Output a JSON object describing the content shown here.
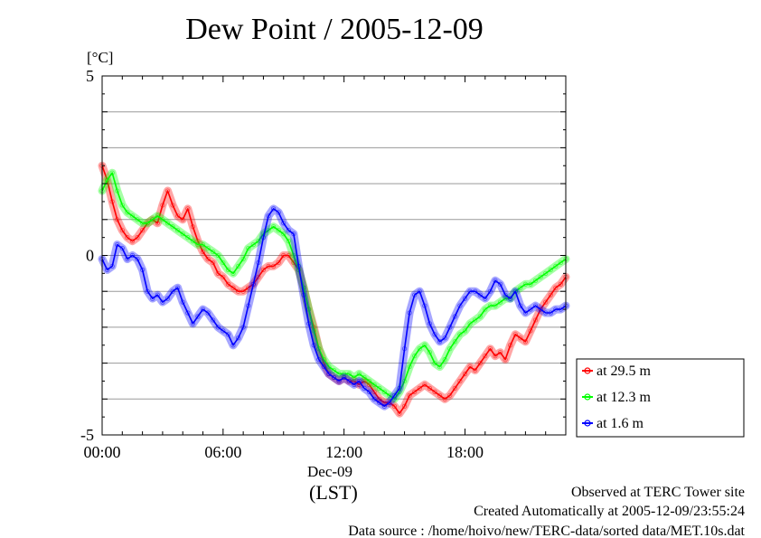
{
  "chart_data": {
    "type": "line",
    "title": "Dew Point / 2005-12-09",
    "ylabel": "[°C]",
    "xlabel": "(LST)",
    "x_sublabel": "Dec-09",
    "xlim": [
      0,
      23
    ],
    "ylim": [
      -5,
      5
    ],
    "x_ticks": [
      "00:00",
      "06:00",
      "12:00",
      "18:00"
    ],
    "x_tick_values": [
      0,
      6,
      12,
      18
    ],
    "y_ticks": [
      "-5",
      "0",
      "5"
    ],
    "y_tick_values": [
      -5,
      0,
      5
    ],
    "grid": true,
    "legend_position": "right-bottom",
    "x_unit": "hour",
    "series": [
      {
        "name": "at 29.5 m",
        "color": "#ff0000",
        "x": [
          0,
          0.25,
          0.5,
          0.75,
          1,
          1.25,
          1.5,
          1.75,
          2,
          2.25,
          2.5,
          2.75,
          3,
          3.25,
          3.5,
          3.75,
          4,
          4.25,
          4.5,
          4.75,
          5,
          5.25,
          5.5,
          5.75,
          6,
          6.25,
          6.5,
          6.75,
          7,
          7.25,
          7.5,
          7.75,
          8,
          8.25,
          8.5,
          8.75,
          9,
          9.25,
          9.5,
          9.75,
          10,
          10.25,
          10.5,
          10.75,
          11,
          11.25,
          11.5,
          11.75,
          12,
          12.25,
          12.5,
          12.75,
          13,
          13.25,
          13.5,
          13.75,
          14,
          14.25,
          14.5,
          14.75,
          15,
          15.25,
          15.5,
          15.75,
          16,
          16.25,
          16.5,
          16.75,
          17,
          17.25,
          17.5,
          17.75,
          18,
          18.25,
          18.5,
          18.75,
          19,
          19.25,
          19.5,
          19.75,
          20,
          20.25,
          20.5,
          20.75,
          21,
          21.25,
          21.5,
          21.75,
          22,
          22.25,
          22.5,
          22.75,
          23
        ],
        "values": [
          2.5,
          2.1,
          1.5,
          1.0,
          0.7,
          0.5,
          0.4,
          0.5,
          0.7,
          0.9,
          1.0,
          0.9,
          1.4,
          1.8,
          1.4,
          1.1,
          1.0,
          1.3,
          0.8,
          0.4,
          0.1,
          -0.1,
          -0.2,
          -0.5,
          -0.6,
          -0.8,
          -0.9,
          -1.0,
          -1.0,
          -0.9,
          -0.8,
          -0.6,
          -0.4,
          -0.3,
          -0.3,
          -0.2,
          0.0,
          0.0,
          -0.2,
          -0.4,
          -0.9,
          -1.5,
          -2.0,
          -2.6,
          -3.0,
          -3.3,
          -3.4,
          -3.5,
          -3.4,
          -3.5,
          -3.5,
          -3.6,
          -3.5,
          -3.6,
          -3.8,
          -4.0,
          -4.1,
          -4.1,
          -4.2,
          -4.4,
          -4.2,
          -3.9,
          -3.8,
          -3.7,
          -3.6,
          -3.7,
          -3.8,
          -3.9,
          -4.0,
          -3.9,
          -3.7,
          -3.5,
          -3.3,
          -3.1,
          -3.2,
          -3.0,
          -2.8,
          -2.6,
          -2.8,
          -2.7,
          -2.9,
          -2.5,
          -2.2,
          -2.3,
          -2.4,
          -2.1,
          -1.8,
          -1.5,
          -1.3,
          -1.1,
          -0.9,
          -0.8,
          -0.6
        ]
      },
      {
        "name": "at 12.3 m",
        "color": "#00ff00",
        "x": [
          0,
          0.25,
          0.5,
          0.75,
          1,
          1.25,
          1.5,
          1.75,
          2,
          2.25,
          2.5,
          2.75,
          3,
          3.25,
          3.5,
          3.75,
          4,
          4.25,
          4.5,
          4.75,
          5,
          5.25,
          5.5,
          5.75,
          6,
          6.25,
          6.5,
          6.75,
          7,
          7.25,
          7.5,
          7.75,
          8,
          8.25,
          8.5,
          8.75,
          9,
          9.25,
          9.5,
          9.75,
          10,
          10.25,
          10.5,
          10.75,
          11,
          11.25,
          11.5,
          11.75,
          12,
          12.25,
          12.5,
          12.75,
          13,
          13.25,
          13.5,
          13.75,
          14,
          14.25,
          14.5,
          14.75,
          15,
          15.25,
          15.5,
          15.75,
          16,
          16.25,
          16.5,
          16.75,
          17,
          17.25,
          17.5,
          17.75,
          18,
          18.25,
          18.5,
          18.75,
          19,
          19.25,
          19.5,
          19.75,
          20,
          20.25,
          20.5,
          20.75,
          21,
          21.25,
          21.5,
          21.75,
          22,
          22.25,
          22.5,
          22.75,
          23
        ],
        "values": [
          1.8,
          2.1,
          2.3,
          1.8,
          1.4,
          1.2,
          1.1,
          1.0,
          0.9,
          0.9,
          1.0,
          1.1,
          1.0,
          0.9,
          0.8,
          0.7,
          0.6,
          0.5,
          0.4,
          0.3,
          0.3,
          0.2,
          0.1,
          0.0,
          -0.2,
          -0.4,
          -0.5,
          -0.3,
          -0.1,
          0.2,
          0.3,
          0.4,
          0.6,
          0.7,
          0.8,
          0.7,
          0.6,
          0.4,
          0.0,
          -0.4,
          -0.9,
          -1.5,
          -2.1,
          -2.6,
          -2.9,
          -3.1,
          -3.2,
          -3.3,
          -3.3,
          -3.3,
          -3.4,
          -3.3,
          -3.4,
          -3.5,
          -3.6,
          -3.7,
          -3.8,
          -3.9,
          -4.0,
          -3.8,
          -3.5,
          -3.1,
          -2.8,
          -2.6,
          -2.5,
          -2.7,
          -3.0,
          -3.1,
          -2.9,
          -2.6,
          -2.4,
          -2.2,
          -2.1,
          -1.9,
          -1.8,
          -1.7,
          -1.5,
          -1.4,
          -1.4,
          -1.3,
          -1.2,
          -1.2,
          -1.0,
          -0.9,
          -0.8,
          -0.8,
          -0.7,
          -0.6,
          -0.5,
          -0.4,
          -0.3,
          -0.2,
          -0.1
        ]
      },
      {
        "name": "at 1.6 m",
        "color": "#0000ff",
        "x": [
          0,
          0.25,
          0.5,
          0.75,
          1,
          1.25,
          1.5,
          1.75,
          2,
          2.25,
          2.5,
          2.75,
          3,
          3.25,
          3.5,
          3.75,
          4,
          4.25,
          4.5,
          4.75,
          5,
          5.25,
          5.5,
          5.75,
          6,
          6.25,
          6.5,
          6.75,
          7,
          7.25,
          7.5,
          7.75,
          8,
          8.25,
          8.5,
          8.75,
          9,
          9.25,
          9.5,
          9.75,
          10,
          10.25,
          10.5,
          10.75,
          11,
          11.25,
          11.5,
          11.75,
          12,
          12.25,
          12.5,
          12.75,
          13,
          13.25,
          13.5,
          13.75,
          14,
          14.25,
          14.5,
          14.75,
          15,
          15.25,
          15.5,
          15.75,
          16,
          16.25,
          16.5,
          16.75,
          17,
          17.25,
          17.5,
          17.75,
          18,
          18.25,
          18.5,
          18.75,
          19,
          19.25,
          19.5,
          19.75,
          20,
          20.25,
          20.5,
          20.75,
          21,
          21.25,
          21.5,
          21.75,
          22,
          22.25,
          22.5,
          22.75,
          23
        ],
        "values": [
          -0.1,
          -0.4,
          -0.3,
          0.3,
          0.2,
          -0.1,
          0.0,
          -0.1,
          -0.4,
          -1.0,
          -1.2,
          -1.1,
          -1.3,
          -1.2,
          -1.0,
          -0.9,
          -1.3,
          -1.6,
          -1.9,
          -1.7,
          -1.5,
          -1.6,
          -1.8,
          -2.0,
          -2.1,
          -2.2,
          -2.5,
          -2.3,
          -2.0,
          -1.4,
          -0.8,
          -0.2,
          0.5,
          1.1,
          1.3,
          1.2,
          0.9,
          0.7,
          0.6,
          -0.3,
          -1.1,
          -1.9,
          -2.5,
          -2.9,
          -3.1,
          -3.3,
          -3.4,
          -3.5,
          -3.4,
          -3.5,
          -3.6,
          -3.5,
          -3.7,
          -3.8,
          -4.0,
          -4.1,
          -4.2,
          -4.1,
          -3.9,
          -3.7,
          -2.6,
          -1.6,
          -1.1,
          -1.0,
          -1.4,
          -1.9,
          -2.2,
          -2.4,
          -2.3,
          -2.0,
          -1.7,
          -1.4,
          -1.2,
          -1.0,
          -1.0,
          -1.1,
          -1.2,
          -1.0,
          -0.7,
          -0.8,
          -1.1,
          -1.2,
          -1.0,
          -1.4,
          -1.6,
          -1.5,
          -1.4,
          -1.5,
          -1.6,
          -1.6,
          -1.5,
          -1.5,
          -1.4
        ]
      }
    ]
  },
  "footer": {
    "line1": "Observed at TERC Tower site",
    "line2": "Created Automatically at 2005-12-09/23:55:24",
    "line3": "Data source : /home/hoivo/new/TERC-data/sorted  data/MET.10s.dat"
  }
}
